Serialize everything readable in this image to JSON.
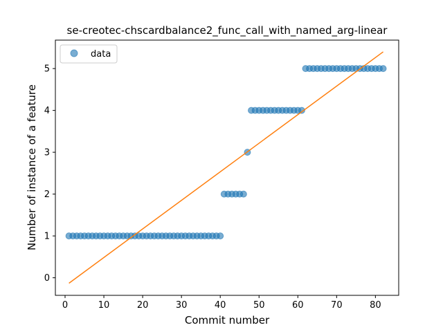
{
  "chart_data": {
    "type": "scatter",
    "title": "se-creotec-chscardbalance2_func_call_with_named_arg-linear",
    "xlabel": "Commit number",
    "ylabel": "Number of instance of a feature",
    "xlim": [
      -2.5,
      86
    ],
    "ylim": [
      -0.42,
      5.68
    ],
    "xticks": [
      0,
      10,
      20,
      30,
      40,
      50,
      60,
      70,
      80
    ],
    "yticks": [
      0,
      1,
      2,
      3,
      4,
      5
    ],
    "grid": false,
    "legend": {
      "position": "top-left",
      "entries": [
        "data"
      ]
    },
    "colors": {
      "data": "#1f77b4",
      "fit": "#ff7f0e"
    },
    "series": [
      {
        "name": "data",
        "type": "scatter",
        "points": [
          [
            1,
            1
          ],
          [
            2,
            1
          ],
          [
            3,
            1
          ],
          [
            4,
            1
          ],
          [
            5,
            1
          ],
          [
            6,
            1
          ],
          [
            7,
            1
          ],
          [
            8,
            1
          ],
          [
            9,
            1
          ],
          [
            10,
            1
          ],
          [
            11,
            1
          ],
          [
            12,
            1
          ],
          [
            13,
            1
          ],
          [
            14,
            1
          ],
          [
            15,
            1
          ],
          [
            16,
            1
          ],
          [
            17,
            1
          ],
          [
            18,
            1
          ],
          [
            19,
            1
          ],
          [
            20,
            1
          ],
          [
            21,
            1
          ],
          [
            22,
            1
          ],
          [
            23,
            1
          ],
          [
            24,
            1
          ],
          [
            25,
            1
          ],
          [
            26,
            1
          ],
          [
            27,
            1
          ],
          [
            28,
            1
          ],
          [
            29,
            1
          ],
          [
            30,
            1
          ],
          [
            31,
            1
          ],
          [
            32,
            1
          ],
          [
            33,
            1
          ],
          [
            34,
            1
          ],
          [
            35,
            1
          ],
          [
            36,
            1
          ],
          [
            37,
            1
          ],
          [
            38,
            1
          ],
          [
            39,
            1
          ],
          [
            40,
            1
          ],
          [
            41,
            2
          ],
          [
            42,
            2
          ],
          [
            43,
            2
          ],
          [
            44,
            2
          ],
          [
            45,
            2
          ],
          [
            46,
            2
          ],
          [
            47,
            3
          ],
          [
            48,
            4
          ],
          [
            49,
            4
          ],
          [
            50,
            4
          ],
          [
            51,
            4
          ],
          [
            52,
            4
          ],
          [
            53,
            4
          ],
          [
            54,
            4
          ],
          [
            55,
            4
          ],
          [
            56,
            4
          ],
          [
            57,
            4
          ],
          [
            58,
            4
          ],
          [
            59,
            4
          ],
          [
            60,
            4
          ],
          [
            61,
            4
          ],
          [
            62,
            5
          ],
          [
            63,
            5
          ],
          [
            64,
            5
          ],
          [
            65,
            5
          ],
          [
            66,
            5
          ],
          [
            67,
            5
          ],
          [
            68,
            5
          ],
          [
            69,
            5
          ],
          [
            70,
            5
          ],
          [
            71,
            5
          ],
          [
            72,
            5
          ],
          [
            73,
            5
          ],
          [
            74,
            5
          ],
          [
            75,
            5
          ],
          [
            76,
            5
          ],
          [
            77,
            5
          ],
          [
            78,
            5
          ],
          [
            79,
            5
          ],
          [
            80,
            5
          ],
          [
            81,
            5
          ],
          [
            82,
            5
          ]
        ]
      },
      {
        "type": "line",
        "points": [
          [
            1,
            -0.13
          ],
          [
            82,
            5.4
          ]
        ]
      }
    ]
  }
}
